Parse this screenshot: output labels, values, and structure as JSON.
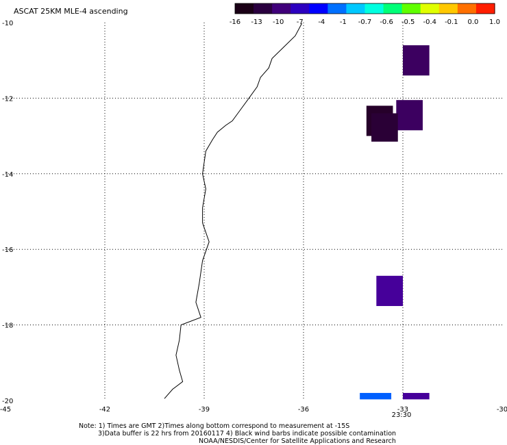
{
  "title": "ASCAT 25KM MLE-4 ascending",
  "colorbar": {
    "labels": [
      "-16",
      "-13",
      "-10",
      "-7",
      "-4",
      "-1",
      "-0.7",
      "-0.6",
      "-0.5",
      "-0.4",
      "-0.1",
      "0.0",
      "1.0"
    ],
    "colors": [
      "#1a0016",
      "#2a003f",
      "#40007a",
      "#2c00c0",
      "#0000ff",
      "#0070ff",
      "#00c8ff",
      "#00ffe0",
      "#00ff78",
      "#60ff00",
      "#e0ff00",
      "#ffc800",
      "#ff7000",
      "#ff1e00"
    ]
  },
  "axes": {
    "x_ticks": [
      "-45",
      "-42",
      "-39",
      "-36",
      "-33",
      "-30"
    ],
    "y_ticks": [
      "-10",
      "-12",
      "-14",
      "-16",
      "-18",
      "-20"
    ],
    "x_range": [
      -45,
      -30
    ],
    "y_range": [
      -20,
      -10
    ],
    "grid": "dotted"
  },
  "time_label": "23:30",
  "time_label_color": "#c02000",
  "cells": [
    {
      "lon_min": -33.0,
      "lon_max": -32.2,
      "lat_min": -11.4,
      "lat_max": -10.6,
      "color": "#3c0060"
    },
    {
      "lon_min": -33.2,
      "lon_max": -32.4,
      "lat_min": -12.85,
      "lat_max": -12.05,
      "color": "#3c0060"
    },
    {
      "lon_min": -34.1,
      "lon_max": -33.3,
      "lat_min": -13.0,
      "lat_max": -12.2,
      "color": "#26002a"
    },
    {
      "lon_min": -33.95,
      "lon_max": -33.15,
      "lat_min": -13.15,
      "lat_max": -12.4,
      "color": "#2a0036"
    },
    {
      "lon_min": -33.8,
      "lon_max": -33.0,
      "lat_min": -17.5,
      "lat_max": -16.7,
      "color": "#46009a"
    },
    {
      "lon_min": -34.3,
      "lon_max": -33.35,
      "lat_min": -19.97,
      "lat_max": -19.8,
      "color": "#0060ff"
    },
    {
      "lon_min": -33.0,
      "lon_max": -32.2,
      "lat_min": -19.97,
      "lat_max": -19.8,
      "color": "#46009a"
    }
  ],
  "coastline": [
    [
      -36.05,
      -10.02
    ],
    [
      -36.25,
      -10.35
    ],
    [
      -36.6,
      -10.65
    ],
    [
      -36.95,
      -10.95
    ],
    [
      -37.05,
      -11.2
    ],
    [
      -37.3,
      -11.45
    ],
    [
      -37.4,
      -11.7
    ],
    [
      -37.65,
      -12.0
    ],
    [
      -37.9,
      -12.3
    ],
    [
      -38.15,
      -12.6
    ],
    [
      -38.35,
      -12.72
    ],
    [
      -38.6,
      -12.9
    ],
    [
      -38.75,
      -13.1
    ],
    [
      -38.95,
      -13.4
    ],
    [
      -39.0,
      -13.7
    ],
    [
      -39.05,
      -14.0
    ],
    [
      -38.95,
      -14.4
    ],
    [
      -39.05,
      -14.9
    ],
    [
      -39.05,
      -15.3
    ],
    [
      -38.85,
      -15.8
    ],
    [
      -39.05,
      -16.3
    ],
    [
      -39.15,
      -16.9
    ],
    [
      -39.25,
      -17.4
    ],
    [
      -39.1,
      -17.8
    ],
    [
      -39.7,
      -18.0
    ],
    [
      -39.75,
      -18.4
    ],
    [
      -39.85,
      -18.8
    ],
    [
      -39.75,
      -19.2
    ],
    [
      -39.65,
      -19.5
    ],
    [
      -39.95,
      -19.7
    ],
    [
      -40.2,
      -19.95
    ]
  ],
  "notes": [
    "Note: 1) Times are GMT 2)Times along bottom correspond to measurement at -15S",
    "3)Data buffer is 22 hrs from 20160117 4) Black wind barbs indicate possible contamination",
    "NOAA/NESDIS/Center for Satellite Applications and Research"
  ]
}
